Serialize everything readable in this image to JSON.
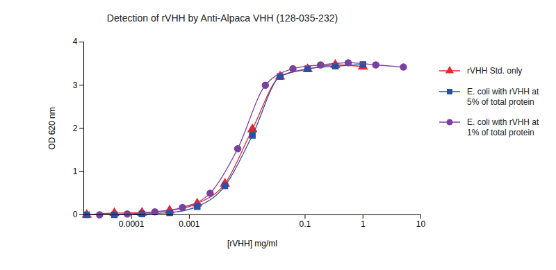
{
  "chart_data": {
    "type": "line",
    "title": "Detection of rVHH by Anti-Alpaca VHH (128-035-232)",
    "x_label": "[rVHH] mg/ml",
    "y_label": "OD 620 nm",
    "log": "x",
    "xlim": [
      1.5e-05,
      10
    ],
    "xticks": [
      0.0001,
      0.001,
      0.1,
      1,
      10
    ],
    "ylim": [
      0,
      4
    ],
    "yticks": [
      0,
      1,
      2,
      3,
      4
    ],
    "legend": "right",
    "series": [
      {
        "name": "rVHH Std. only",
        "color": "#e8262b",
        "marker": "triangle",
        "x": [
          1.69e-05,
          5.08e-05,
          0.000152,
          0.000457,
          0.00137,
          0.00412,
          0.0123,
          0.037,
          0.111,
          0.333,
          1
        ],
        "values": [
          0.0,
          0.04,
          0.05,
          0.1,
          0.26,
          0.72,
          1.98,
          3.2,
          3.37,
          3.47,
          3.43
        ]
      },
      {
        "name": "E. coli with rVHH at 5% of total protein",
        "color": "#2a4fa3",
        "marker": "square",
        "x": [
          1.69e-05,
          5.08e-05,
          0.000152,
          0.000457,
          0.00137,
          0.00412,
          0.0123,
          0.037,
          0.111,
          0.333,
          1
        ],
        "values": [
          0.0,
          0.0,
          0.02,
          0.05,
          0.19,
          0.67,
          1.84,
          3.2,
          3.38,
          3.44,
          3.48
        ]
      },
      {
        "name": "E. coli with rVHH at 1% of total protein",
        "color": "#7b3f9e",
        "marker": "circle",
        "x": [
          2.82e-05,
          8.47e-05,
          0.000254,
          0.000762,
          0.00229,
          0.00686,
          0.0206,
          0.0617,
          0.185,
          0.556,
          1.667,
          5
        ],
        "values": [
          0.0,
          0.02,
          0.07,
          0.17,
          0.5,
          1.53,
          3.0,
          3.38,
          3.47,
          3.52,
          3.47,
          3.42
        ]
      }
    ]
  }
}
